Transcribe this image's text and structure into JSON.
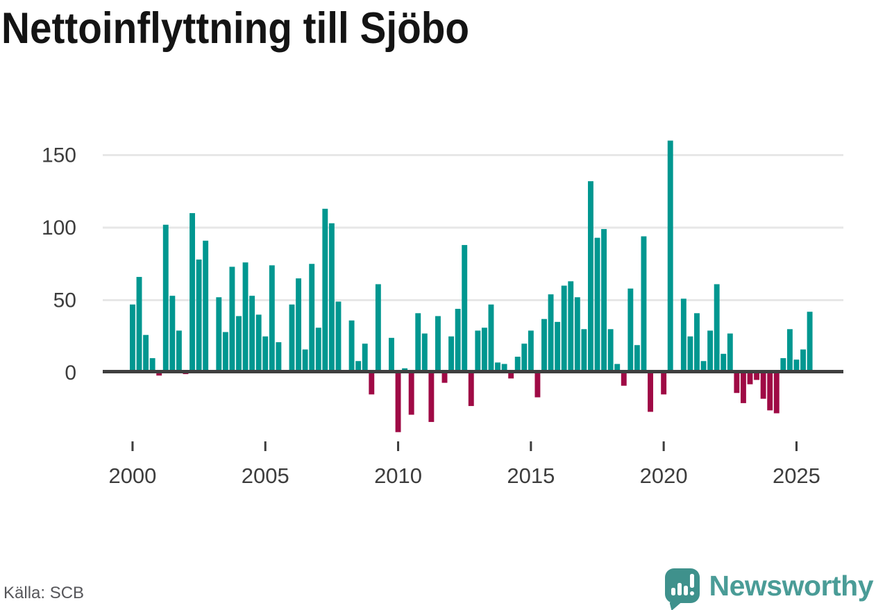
{
  "title": "Nettoinflyttning till Sjöbo",
  "source": "Källa: SCB",
  "logo": {
    "text": "Newsworthy",
    "icon": "speech-bubble-bar-chart-exclamation"
  },
  "colors": {
    "positive_bar": "#009790",
    "negative_bar": "#9f0a45",
    "axis": "#3f3f3f",
    "grid": "#e7e7e7",
    "tick_text": "#3d3d3d",
    "title_text": "#141414",
    "source_text": "#56565a",
    "logo_teal": "#3f918c",
    "logo_text_teal": "#4a9c97",
    "background": "#ffffff"
  },
  "chart_data": {
    "type": "bar",
    "title": "Nettoinflyttning till Sjöbo",
    "xlabel": "",
    "ylabel": "",
    "x_unit": "quarter",
    "x_tick_labels": [
      "2000",
      "2005",
      "2010",
      "2015",
      "2020",
      "2025"
    ],
    "x_tick_quarter_indices": [
      0,
      20,
      40,
      60,
      80,
      100
    ],
    "y_ticks": [
      0,
      50,
      100,
      150
    ],
    "ylim": [
      -45,
      165
    ],
    "grid": "horizontal",
    "legend": "none",
    "years": [
      {
        "year": 2000,
        "quarters": [
          47,
          66,
          26,
          10
        ]
      },
      {
        "year": 2001,
        "quarters": [
          -2,
          102,
          53,
          29
        ]
      },
      {
        "year": 2002,
        "quarters": [
          -1,
          110,
          78,
          91
        ]
      },
      {
        "year": 2003,
        "quarters": [
          0,
          52,
          28,
          73
        ]
      },
      {
        "year": 2004,
        "quarters": [
          39,
          76,
          53,
          40
        ]
      },
      {
        "year": 2005,
        "quarters": [
          25,
          74,
          21,
          0
        ]
      },
      {
        "year": 2006,
        "quarters": [
          47,
          65,
          16,
          75
        ]
      },
      {
        "year": 2007,
        "quarters": [
          31,
          113,
          103,
          49
        ]
      },
      {
        "year": 2008,
        "quarters": [
          0,
          36,
          8,
          20
        ]
      },
      {
        "year": 2009,
        "quarters": [
          -15,
          61,
          0,
          24
        ]
      },
      {
        "year": 2010,
        "quarters": [
          -41,
          3,
          -29,
          41
        ]
      },
      {
        "year": 2011,
        "quarters": [
          27,
          -34,
          39,
          -7
        ]
      },
      {
        "year": 2012,
        "quarters": [
          25,
          44,
          88,
          -23
        ]
      },
      {
        "year": 2013,
        "quarters": [
          29,
          31,
          47,
          7
        ]
      },
      {
        "year": 2014,
        "quarters": [
          6,
          -4,
          11,
          20
        ]
      },
      {
        "year": 2015,
        "quarters": [
          29,
          -17,
          37,
          54
        ]
      },
      {
        "year": 2016,
        "quarters": [
          35,
          60,
          63,
          52
        ]
      },
      {
        "year": 2017,
        "quarters": [
          30,
          132,
          93,
          99
        ]
      },
      {
        "year": 2018,
        "quarters": [
          30,
          6,
          -9,
          58
        ]
      },
      {
        "year": 2019,
        "quarters": [
          19,
          94,
          -27,
          0
        ]
      },
      {
        "year": 2020,
        "quarters": [
          -15,
          160,
          0,
          51
        ]
      },
      {
        "year": 2021,
        "quarters": [
          25,
          41,
          8,
          29
        ]
      },
      {
        "year": 2022,
        "quarters": [
          61,
          13,
          27,
          -14
        ]
      },
      {
        "year": 2023,
        "quarters": [
          -21,
          -8,
          -5,
          -18
        ]
      },
      {
        "year": 2024,
        "quarters": [
          -26,
          -28,
          10,
          30
        ]
      },
      {
        "year": 2025,
        "quarters": [
          9,
          16,
          42
        ]
      }
    ]
  }
}
